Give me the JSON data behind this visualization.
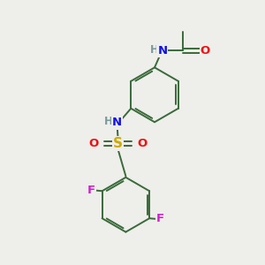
{
  "background_color": "#eeeeea",
  "atom_colors": {
    "C": "#3a3a3a",
    "H": "#7a9a9a",
    "N": "#1010ee",
    "O": "#ee1010",
    "S": "#ccaa00",
    "F": "#cc22cc"
  },
  "bond_color": "#3a6a3a",
  "bond_lw": 1.4,
  "figsize": [
    3.0,
    3.0
  ],
  "dpi": 100,
  "xlim": [
    0,
    10
  ],
  "ylim": [
    0,
    10
  ]
}
